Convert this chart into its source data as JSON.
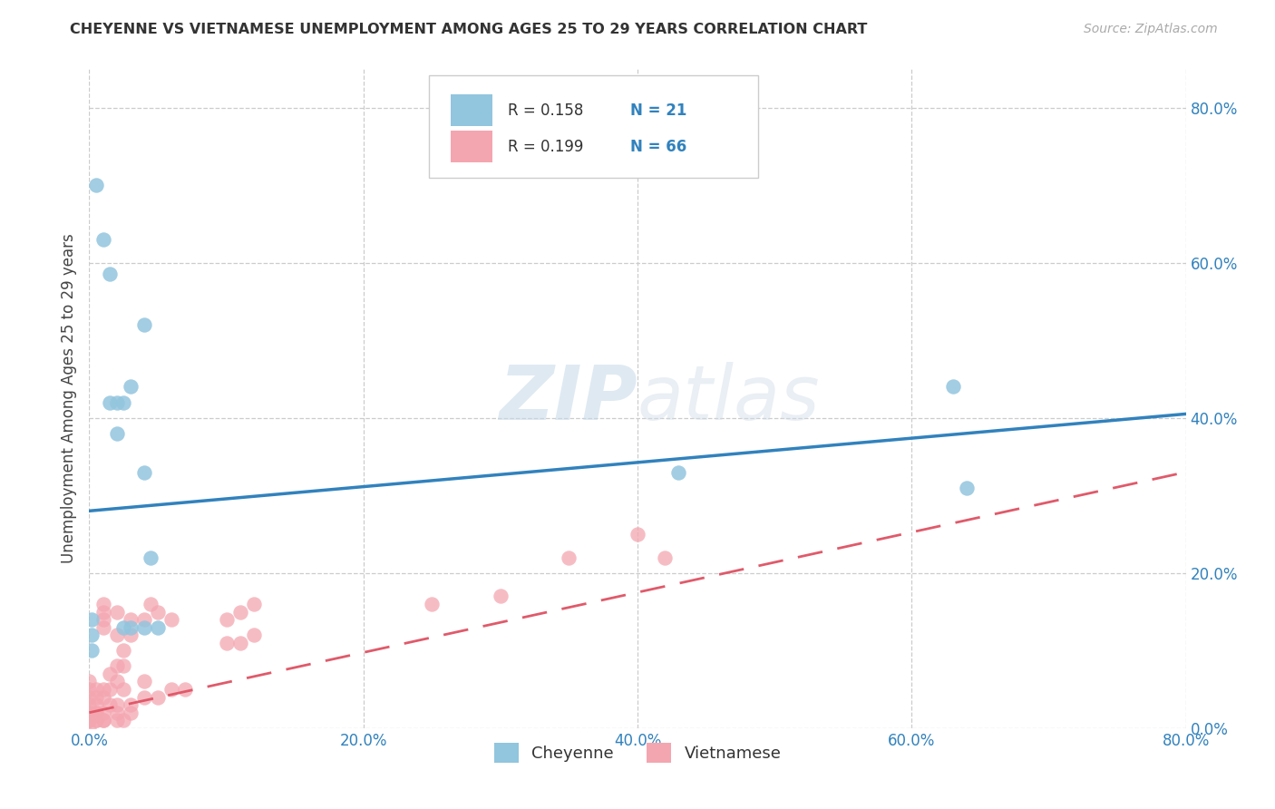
{
  "title": "CHEYENNE VS VIETNAMESE UNEMPLOYMENT AMONG AGES 25 TO 29 YEARS CORRELATION CHART",
  "source": "Source: ZipAtlas.com",
  "ylabel": "Unemployment Among Ages 25 to 29 years",
  "cheyenne_label": "Cheyenne",
  "vietnamese_label": "Vietnamese",
  "legend_cheyenne_r": "R = 0.158",
  "legend_cheyenne_n": "N = 21",
  "legend_vietnamese_r": "R = 0.199",
  "legend_vietnamese_n": "N = 66",
  "cheyenne_color": "#92c5de",
  "vietnamese_color": "#f4a6b0",
  "cheyenne_line_color": "#3182bd",
  "vietnamese_line_color": "#e05a6a",
  "watermark_zip": "ZIP",
  "watermark_atlas": "atlas",
  "xlim": [
    0.0,
    0.8
  ],
  "ylim": [
    0.0,
    0.85
  ],
  "xticks": [
    0.0,
    0.2,
    0.4,
    0.6,
    0.8
  ],
  "yticks": [
    0.0,
    0.2,
    0.4,
    0.6,
    0.8
  ],
  "cheyenne_x": [
    0.005,
    0.01,
    0.015,
    0.015,
    0.02,
    0.02,
    0.025,
    0.025,
    0.03,
    0.03,
    0.04,
    0.04,
    0.04,
    0.045,
    0.05,
    0.43,
    0.63,
    0.64,
    0.002,
    0.002,
    0.002
  ],
  "cheyenne_y": [
    0.7,
    0.63,
    0.585,
    0.42,
    0.42,
    0.38,
    0.42,
    0.13,
    0.44,
    0.13,
    0.13,
    0.52,
    0.33,
    0.22,
    0.13,
    0.33,
    0.44,
    0.31,
    0.14,
    0.12,
    0.1
  ],
  "vietnamese_x": [
    0.0,
    0.0,
    0.0,
    0.0,
    0.0,
    0.0,
    0.0,
    0.0,
    0.0,
    0.0,
    0.0,
    0.0,
    0.005,
    0.005,
    0.005,
    0.005,
    0.005,
    0.005,
    0.005,
    0.01,
    0.01,
    0.01,
    0.01,
    0.01,
    0.01,
    0.01,
    0.01,
    0.01,
    0.015,
    0.015,
    0.015,
    0.02,
    0.02,
    0.02,
    0.02,
    0.02,
    0.02,
    0.02,
    0.025,
    0.025,
    0.025,
    0.025,
    0.03,
    0.03,
    0.03,
    0.03,
    0.04,
    0.04,
    0.04,
    0.045,
    0.05,
    0.05,
    0.06,
    0.06,
    0.07,
    0.1,
    0.1,
    0.11,
    0.11,
    0.12,
    0.12,
    0.25,
    0.3,
    0.35,
    0.4,
    0.42
  ],
  "vietnamese_y": [
    0.0,
    0.01,
    0.01,
    0.01,
    0.02,
    0.02,
    0.02,
    0.02,
    0.03,
    0.04,
    0.05,
    0.06,
    0.01,
    0.01,
    0.02,
    0.02,
    0.03,
    0.04,
    0.05,
    0.01,
    0.01,
    0.02,
    0.04,
    0.05,
    0.13,
    0.14,
    0.15,
    0.16,
    0.03,
    0.05,
    0.07,
    0.01,
    0.02,
    0.03,
    0.06,
    0.08,
    0.12,
    0.15,
    0.01,
    0.05,
    0.08,
    0.1,
    0.02,
    0.03,
    0.12,
    0.14,
    0.04,
    0.06,
    0.14,
    0.16,
    0.04,
    0.15,
    0.05,
    0.14,
    0.05,
    0.11,
    0.14,
    0.11,
    0.15,
    0.12,
    0.16,
    0.16,
    0.17,
    0.22,
    0.25,
    0.22
  ],
  "cheyenne_line_start_y": 0.28,
  "cheyenne_line_end_y": 0.405,
  "vietnamese_line_start_y": 0.02,
  "vietnamese_line_end_y": 0.33
}
